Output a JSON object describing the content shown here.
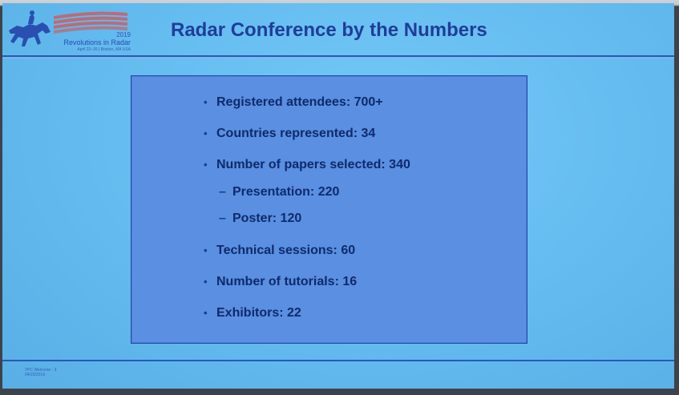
{
  "slide": {
    "title": "Radar Conference by the Numbers",
    "logo": {
      "year": "2019",
      "name": "Revolutions in Radar",
      "place": "April 22–26 | Boston, MA USA",
      "icon": "horse-rider-icon",
      "stripe_color": "#d9534f"
    },
    "bullets": [
      "Registered attendees: 700+",
      "Countries represented: 34",
      "Number of papers selected: 340"
    ],
    "sub_bullets": [
      "Presentation: 220",
      "Poster: 120"
    ],
    "bullets_more": [
      "Technical sessions: 60",
      "Number of tutorials: 16",
      "Exhibitors: 22"
    ],
    "footer": {
      "line1": "TPC Welcome - 3",
      "line2": "04/23/2019"
    }
  },
  "colors": {
    "title": "#1f3d9a",
    "box": "#5a8fe2",
    "background": "#66bdf0"
  }
}
